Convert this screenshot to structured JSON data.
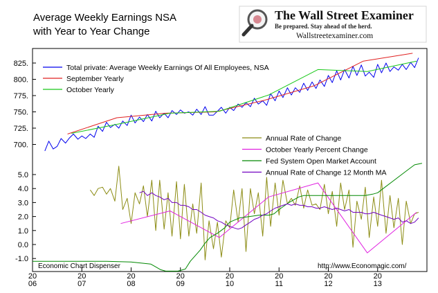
{
  "title_lines": [
    "Average Weekly Earnings NSA",
    "with Year to Year Change"
  ],
  "logo": {
    "name": "The Wall Street Examiner",
    "tagline": "Be prepared. Stay ahead of the herd.",
    "url": "Wallstreetexaminer.com"
  },
  "footer": {
    "left": "Economic Chart Dispenser",
    "right": "http://www.Economagic.com/"
  },
  "colors": {
    "blue": "#0000ee",
    "red": "#e02020",
    "green": "#18c818",
    "olive": "#8c8c14",
    "magenta": "#e020e0",
    "darkgreen": "#008800",
    "purple": "#7000c0"
  },
  "x_axis": {
    "range": [
      2006.0,
      2014.0
    ],
    "tick_labels": [
      {
        "top": "20",
        "bottom": "06"
      },
      {
        "top": "20",
        "bottom": "07"
      },
      {
        "top": "20",
        "bottom": "08"
      },
      {
        "top": "20",
        "bottom": "09"
      },
      {
        "top": "20",
        "bottom": "10"
      },
      {
        "top": "20",
        "bottom": "11"
      },
      {
        "top": "20",
        "bottom": "12"
      },
      {
        "top": "20",
        "bottom": "13"
      }
    ]
  },
  "chart_data": [
    {
      "type": "line",
      "panel": "top",
      "title": "Average Weekly Earnings NSA",
      "ylim": [
        680,
        840
      ],
      "y_ticks": [
        "825.",
        "800.",
        "775.",
        "750.",
        "725.",
        "700."
      ],
      "legend_position": "top-left",
      "series": [
        {
          "name": "Total private: Average Weekly Earnings Of All Employees, NSA",
          "color": "blue",
          "x": [
            2006.25,
            2006.33,
            2006.42,
            2006.5,
            2006.58,
            2006.67,
            2006.75,
            2006.83,
            2006.92,
            2007.0,
            2007.08,
            2007.17,
            2007.25,
            2007.33,
            2007.42,
            2007.5,
            2007.58,
            2007.67,
            2007.75,
            2007.83,
            2007.92,
            2008.0,
            2008.08,
            2008.17,
            2008.25,
            2008.33,
            2008.42,
            2008.5,
            2008.58,
            2008.67,
            2008.75,
            2008.83,
            2008.92,
            2009.0,
            2009.08,
            2009.17,
            2009.25,
            2009.33,
            2009.42,
            2009.5,
            2009.58,
            2009.67,
            2009.75,
            2009.83,
            2009.92,
            2010.0,
            2010.08,
            2010.17,
            2010.25,
            2010.33,
            2010.42,
            2010.5,
            2010.58,
            2010.67,
            2010.75,
            2010.83,
            2010.92,
            2011.0,
            2011.08,
            2011.17,
            2011.25,
            2011.33,
            2011.42,
            2011.5,
            2011.58,
            2011.67,
            2011.75,
            2011.83,
            2011.92,
            2012.0,
            2012.08,
            2012.17,
            2012.25,
            2012.33,
            2012.42,
            2012.5,
            2012.58,
            2012.67,
            2012.75,
            2012.83,
            2012.92,
            2013.0,
            2013.08,
            2013.17,
            2013.25,
            2013.33,
            2013.42,
            2013.5,
            2013.58,
            2013.67,
            2013.75,
            2013.83
          ],
          "values": [
            690,
            705,
            693,
            697,
            709,
            702,
            710,
            716,
            708,
            713,
            709,
            716,
            711,
            728,
            720,
            734,
            726,
            731,
            725,
            736,
            729,
            745,
            733,
            742,
            735,
            746,
            736,
            751,
            741,
            748,
            741,
            752,
            746,
            753,
            748,
            750,
            745,
            754,
            746,
            758,
            745,
            745,
            751,
            757,
            748,
            757,
            752,
            762,
            757,
            764,
            758,
            771,
            762,
            767,
            760,
            778,
            767,
            782,
            772,
            787,
            776,
            787,
            780,
            794,
            783,
            796,
            786,
            799,
            789,
            806,
            795,
            813,
            799,
            815,
            802,
            820,
            806,
            822,
            805,
            811,
            803,
            823,
            810,
            825,
            812,
            819,
            814,
            823,
            815,
            826,
            818,
            833
          ]
        },
        {
          "name": "September Yearly",
          "color": "red",
          "x": [
            2006.71,
            2007.71,
            2008.71,
            2009.71,
            2010.71,
            2011.71,
            2012.71,
            2013.71
          ],
          "values": [
            716,
            741,
            748,
            750,
            768,
            790,
            828,
            840
          ]
        },
        {
          "name": "October Yearly",
          "color": "green",
          "x": [
            2006.79,
            2007.79,
            2008.79,
            2009.79,
            2010.79,
            2011.79,
            2012.79,
            2013.79
          ],
          "values": [
            717,
            732,
            748,
            751,
            776,
            815,
            812,
            828
          ]
        }
      ]
    },
    {
      "type": "line",
      "panel": "bottom",
      "title": "",
      "ylim": [
        -1.9,
        6.4
      ],
      "y_ticks": [
        "5.0",
        "4.0",
        "3.0",
        "2.0",
        "1.0",
        "0.0",
        "-1.0"
      ],
      "legend_position": "top-right",
      "series": [
        {
          "name": "Annual Rate of Change",
          "color": "olive",
          "x": [
            2007.17,
            2007.25,
            2007.33,
            2007.42,
            2007.5,
            2007.58,
            2007.67,
            2007.75,
            2007.83,
            2007.92,
            2008.0,
            2008.08,
            2008.17,
            2008.25,
            2008.33,
            2008.42,
            2008.5,
            2008.58,
            2008.67,
            2008.75,
            2008.83,
            2008.92,
            2009.0,
            2009.08,
            2009.17,
            2009.25,
            2009.33,
            2009.42,
            2009.5,
            2009.58,
            2009.67,
            2009.75,
            2009.83,
            2009.92,
            2010.0,
            2010.08,
            2010.17,
            2010.25,
            2010.33,
            2010.42,
            2010.5,
            2010.58,
            2010.67,
            2010.75,
            2010.83,
            2010.92,
            2011.0,
            2011.08,
            2011.17,
            2011.25,
            2011.33,
            2011.42,
            2011.5,
            2011.58,
            2011.67,
            2011.75,
            2011.83,
            2011.92,
            2012.0,
            2012.08,
            2012.17,
            2012.25,
            2012.33,
            2012.42,
            2012.5,
            2012.58,
            2012.67,
            2012.75,
            2012.83,
            2012.92,
            2013.0,
            2013.08,
            2013.17,
            2013.25,
            2013.33,
            2013.42,
            2013.5,
            2013.58,
            2013.67,
            2013.75,
            2013.83
          ],
          "values": [
            3.9,
            3.5,
            4.0,
            4.1,
            3.6,
            4.0,
            3.1,
            5.6,
            2.5,
            3.3,
            1.5,
            3.7,
            2.9,
            4.2,
            2.0,
            4.6,
            1.0,
            4.6,
            1.1,
            3.7,
            0.6,
            4.5,
            0.4,
            4.3,
            0.6,
            2.9,
            0.8,
            4.4,
            -1.1,
            1.7,
            -0.3,
            1.6,
            -0.9,
            1.7,
            1.2,
            3.9,
            1.6,
            4.0,
            -0.5,
            4.0,
            2.2,
            3.7,
            0.6,
            4.8,
            1.3,
            4.4,
            2.1,
            4.6,
            2.9,
            3.3,
            2.8,
            4.2,
            2.6,
            3.9,
            2.8,
            2.9,
            2.5,
            4.3,
            2.2,
            3.8,
            1.3,
            4.4,
            2.5,
            3.9,
            -0.2,
            3.1,
            1.8,
            4.1,
            0.5,
            3.4,
            1.3,
            4.6,
            0.8,
            3.5,
            1.2,
            3.3,
            0.0,
            3.1,
            1.5,
            2.2,
            2.3
          ]
        },
        {
          "name": "October Yearly Percent Change",
          "color": "magenta",
          "x": [
            2007.79,
            2008.79,
            2009.79,
            2010.79,
            2011.79,
            2012.79,
            2013.79
          ],
          "values": [
            1.5,
            2.4,
            0.5,
            3.4,
            4.4,
            -0.6,
            2.3
          ]
        },
        {
          "name": "Fed System Open Market Account",
          "color": "darkgreen",
          "x": [
            2006.0,
            2006.5,
            2007.0,
            2007.5,
            2008.0,
            2008.4,
            2008.5,
            2008.6,
            2008.7,
            2008.85,
            2008.95,
            2009.0,
            2009.1,
            2009.2,
            2009.3,
            2009.4,
            2009.5,
            2009.6,
            2009.75,
            2009.9,
            2010.0,
            2010.2,
            2010.4,
            2010.6,
            2010.8,
            2010.9,
            2011.0,
            2011.2,
            2011.4,
            2011.5,
            2011.6,
            2011.8,
            2012.0,
            2012.2,
            2012.4,
            2012.6,
            2012.75,
            2012.9,
            2013.0,
            2013.15,
            2013.3,
            2013.45,
            2013.6,
            2013.75,
            2013.9
          ],
          "values": [
            -1.2,
            -1.2,
            -1.2,
            -1.2,
            -1.25,
            -1.4,
            -1.6,
            -1.8,
            -1.9,
            -1.9,
            -1.9,
            -1.85,
            -1.75,
            -1.2,
            -0.8,
            -0.4,
            0.1,
            0.5,
            0.8,
            1.2,
            1.6,
            1.9,
            2.0,
            2.1,
            2.1,
            2.2,
            2.5,
            3.0,
            3.4,
            3.5,
            3.5,
            3.5,
            3.5,
            3.5,
            3.5,
            3.5,
            3.5,
            3.6,
            3.7,
            4.1,
            4.5,
            4.9,
            5.3,
            5.7,
            5.8
          ]
        },
        {
          "name": "Annual Rate of Change 12 Month MA",
          "color": "purple",
          "x": [
            2008.17,
            2008.25,
            2008.33,
            2008.42,
            2008.5,
            2008.58,
            2008.67,
            2008.75,
            2008.83,
            2008.92,
            2009.0,
            2009.08,
            2009.17,
            2009.25,
            2009.33,
            2009.42,
            2009.5,
            2009.58,
            2009.67,
            2009.75,
            2009.83,
            2009.92,
            2010.0,
            2010.08,
            2010.17,
            2010.25,
            2010.33,
            2010.42,
            2010.5,
            2010.58,
            2010.67,
            2010.75,
            2010.83,
            2010.92,
            2011.0,
            2011.08,
            2011.17,
            2011.25,
            2011.33,
            2011.42,
            2011.5,
            2011.58,
            2011.67,
            2011.75,
            2011.83,
            2011.92,
            2012.0,
            2012.08,
            2012.17,
            2012.25,
            2012.33,
            2012.42,
            2012.5,
            2012.58,
            2012.67,
            2012.75,
            2012.83,
            2012.92,
            2013.0,
            2013.08,
            2013.17,
            2013.25,
            2013.33,
            2013.42,
            2013.5,
            2013.58,
            2013.67,
            2013.75,
            2013.83
          ],
          "values": [
            3.7,
            3.8,
            3.5,
            3.7,
            3.5,
            3.4,
            3.2,
            3.3,
            3.0,
            3.0,
            2.8,
            2.8,
            2.7,
            2.5,
            2.5,
            2.3,
            2.1,
            2.0,
            1.9,
            1.7,
            1.6,
            1.4,
            1.3,
            1.2,
            1.1,
            1.2,
            1.4,
            1.6,
            1.8,
            1.9,
            2.1,
            2.2,
            2.4,
            2.6,
            2.7,
            2.8,
            2.9,
            2.8,
            2.9,
            2.8,
            2.8,
            2.7,
            2.7,
            2.6,
            2.6,
            2.7,
            2.6,
            2.5,
            2.6,
            2.5,
            2.4,
            2.5,
            2.3,
            2.3,
            2.3,
            2.2,
            2.2,
            2.3,
            2.2,
            2.1,
            2.0,
            1.9,
            1.8,
            1.9,
            1.6,
            1.7,
            1.5,
            1.6,
            1.9
          ]
        }
      ]
    }
  ]
}
